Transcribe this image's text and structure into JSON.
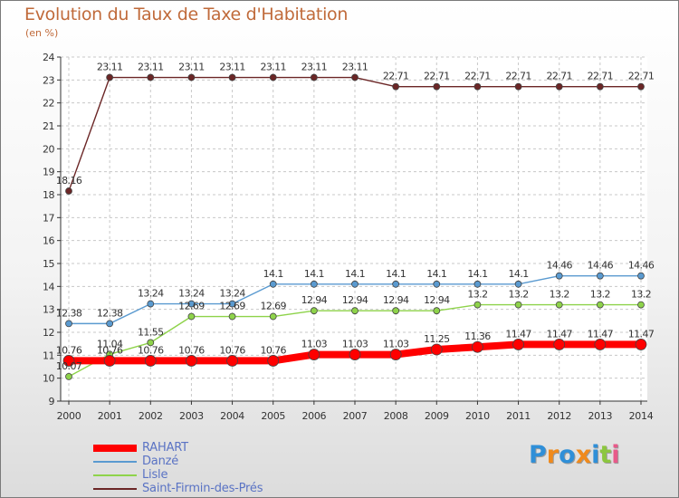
{
  "chart_data": {
    "type": "line",
    "title": "Evolution du Taux de Taxe d'Habitation",
    "unit_label": "(en %)",
    "x": [
      2000,
      2001,
      2002,
      2003,
      2004,
      2005,
      2006,
      2007,
      2008,
      2009,
      2010,
      2011,
      2012,
      2013,
      2014
    ],
    "ylim": [
      9,
      24
    ],
    "yticks": [
      9,
      10,
      11,
      12,
      13,
      14,
      15,
      16,
      17,
      18,
      19,
      20,
      21,
      22,
      23,
      24
    ],
    "grid": true,
    "legend_position": "bottom-left",
    "series": [
      {
        "name": "RAHART",
        "color": "#ff0000",
        "values": [
          10.76,
          10.76,
          10.76,
          10.76,
          10.76,
          10.76,
          11.03,
          11.03,
          11.03,
          11.25,
          11.36,
          11.47,
          11.47,
          11.47,
          11.47
        ],
        "labels": [
          "10.76",
          "10.76",
          "10.76",
          "10.76",
          "10.76",
          "10.76",
          "11.03",
          "11.03",
          "11.03",
          "11.25",
          "11.36",
          "11.47",
          "11.47",
          "11.47",
          "11.47"
        ]
      },
      {
        "name": "Danzé",
        "color": "#5a9ad0",
        "values": [
          12.38,
          12.38,
          13.24,
          13.24,
          13.24,
          14.1,
          14.1,
          14.1,
          14.1,
          14.1,
          14.1,
          14.1,
          14.46,
          14.46,
          14.46
        ],
        "labels": [
          "12.38",
          "12.38",
          "13.24",
          "13.24",
          "13.24",
          "14.1",
          "14.1",
          "14.1",
          "14.1",
          "14.1",
          "14.1",
          "14.1",
          "14.46",
          "14.46",
          "14.46"
        ]
      },
      {
        "name": "Lisle",
        "color": "#8ed34a",
        "values": [
          10.07,
          11.04,
          11.55,
          12.69,
          12.69,
          12.69,
          12.94,
          12.94,
          12.94,
          12.94,
          13.2,
          13.2,
          13.2,
          13.2,
          13.2
        ],
        "labels": [
          "10.07",
          "11.04",
          "11.55",
          "12.69",
          "12.69",
          "12.69",
          "12.94",
          "12.94",
          "12.94",
          "12.94",
          "13.2",
          "13.2",
          "13.2",
          "13.2",
          "13.2"
        ]
      },
      {
        "name": "Saint-Firmin-des-Prés",
        "color": "#6b2626",
        "values": [
          18.16,
          23.11,
          23.11,
          23.11,
          23.11,
          23.11,
          23.11,
          23.11,
          22.71,
          22.71,
          22.71,
          22.71,
          22.71,
          22.71,
          22.71
        ],
        "labels": [
          "18.16",
          "23.11",
          "23.11",
          "23.11",
          "23.11",
          "23.11",
          "23.11",
          "23.11",
          "22.71",
          "22.71",
          "22.71",
          "22.71",
          "22.71",
          "22.71",
          "22.71"
        ]
      }
    ]
  },
  "logo": {
    "letters": [
      "P",
      "r",
      "o",
      "x",
      "i",
      "t",
      "i"
    ],
    "colors": [
      "#2f8fd8",
      "#f08a1c",
      "#2f8fd8",
      "#f08a1c",
      "#2f8fd8",
      "#8cc63f",
      "#e85a8a"
    ]
  }
}
